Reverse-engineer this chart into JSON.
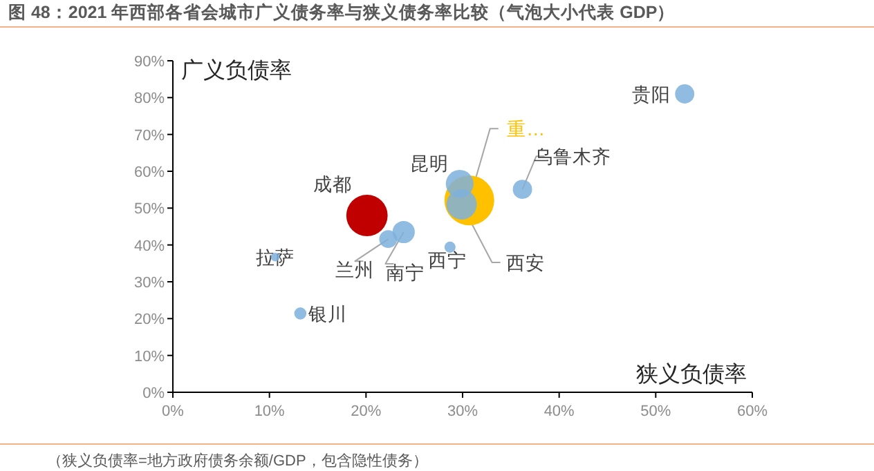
{
  "chart_data": {
    "type": "bubble",
    "title": "图 48：2021 年西部各省会城市广义债务率与狭义债务率比较（气泡大小代表 GDP）",
    "xlabel": "狭义负债率",
    "ylabel": "广义负债率",
    "xlim": [
      0,
      60
    ],
    "ylim": [
      0,
      90
    ],
    "xticks": [
      {
        "value": 0,
        "label": "0%"
      },
      {
        "value": 10,
        "label": "10%"
      },
      {
        "value": 20,
        "label": "20%"
      },
      {
        "value": 30,
        "label": "30%"
      },
      {
        "value": 40,
        "label": "40%"
      },
      {
        "value": 50,
        "label": "50%"
      },
      {
        "value": 60,
        "label": "60%"
      }
    ],
    "yticks": [
      {
        "value": 0,
        "label": "0%"
      },
      {
        "value": 10,
        "label": "10%"
      },
      {
        "value": 20,
        "label": "20%"
      },
      {
        "value": 30,
        "label": "30%"
      },
      {
        "value": 40,
        "label": "40%"
      },
      {
        "value": 50,
        "label": "50%"
      },
      {
        "value": 60,
        "label": "60%"
      },
      {
        "value": 70,
        "label": "70%"
      },
      {
        "value": 80,
        "label": "80%"
      },
      {
        "value": 90,
        "label": "90%"
      }
    ],
    "grid": false,
    "series": [
      {
        "name": "成都",
        "color": "#c00000",
        "x": [
          20.1
        ],
        "values": [
          48.0
        ],
        "sizes": [
          0.69
        ]
      },
      {
        "name": "重…",
        "color": "#ffc000",
        "x": [
          30.7
        ],
        "values": [
          52.1
        ],
        "sizes": [
          1
        ]
      },
      {
        "name": "贵阳",
        "color": "#7eb0dc",
        "x": [
          53.0
        ],
        "values": [
          81.0
        ],
        "sizes": [
          0.15
        ]
      },
      {
        "name": "昆明",
        "color": "#7eb0dc",
        "x": [
          29.7
        ],
        "values": [
          56.6
        ],
        "sizes": [
          0.31
        ]
      },
      {
        "name": "西安",
        "color": "#7eb0dc",
        "x": [
          29.9
        ],
        "values": [
          51.0
        ],
        "sizes": [
          0.37
        ]
      },
      {
        "name": "乌鲁木齐",
        "color": "#7eb0dc",
        "x": [
          36.2
        ],
        "values": [
          55.1
        ],
        "sizes": [
          0.15
        ]
      },
      {
        "name": "兰州",
        "color": "#7eb0dc",
        "x": [
          22.3
        ],
        "values": [
          41.6
        ],
        "sizes": [
          0.13
        ]
      },
      {
        "name": "南宁",
        "color": "#7eb0dc",
        "x": [
          23.9
        ],
        "values": [
          43.5
        ],
        "sizes": [
          0.2
        ]
      },
      {
        "name": "西宁",
        "color": "#7eb0dc",
        "x": [
          28.7
        ],
        "values": [
          39.4
        ],
        "sizes": [
          0.05
        ]
      },
      {
        "name": "拉萨",
        "color": "#7eb0dc",
        "x": [
          10.6
        ],
        "values": [
          36.7
        ],
        "sizes": [
          0.03
        ]
      },
      {
        "name": "银川",
        "color": "#7eb0dc",
        "x": [
          13.2
        ],
        "values": [
          21.4
        ],
        "sizes": [
          0.06
        ]
      }
    ],
    "annotations": [
      "（狭义负债率=地方政府债务余额/GDP，包含隐性债务）"
    ]
  }
}
